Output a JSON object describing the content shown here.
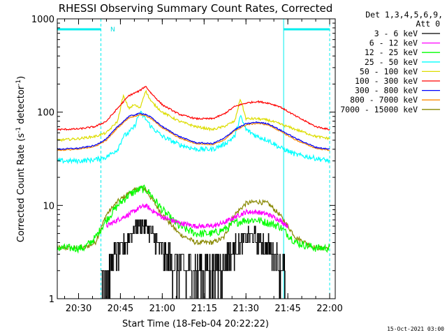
{
  "chart_data": {
    "type": "line",
    "title": "RHESSI Observing Summary Count Rates, Corrected",
    "xlabel": "Start Time (18-Feb-04 20:22:22)",
    "ylabel": "Corrected Count Rate (s",
    "ylabel_sup1": "-1",
    "ylabel_mid": " detector",
    "ylabel_sup2": "-1",
    "ylabel_end": ")",
    "x_scale": "time",
    "x_range": [
      "20:22:22",
      "22:02:00"
    ],
    "x_ticks": [
      "20:30",
      "20:45",
      "21:00",
      "21:15",
      "21:30",
      "21:45",
      "22:00"
    ],
    "y_scale": "log",
    "y_range": [
      1,
      1000
    ],
    "y_ticks": [
      "1",
      "10",
      "100",
      "1000"
    ],
    "legend_title_1": "Det 1,3,4,5,6,9,",
    "legend_title_2": "Att 0",
    "legend_position": "right",
    "footer_date": "15-Oct-2021 03:00",
    "annotation": "N",
    "night_intervals": [
      {
        "start": "20:22:22",
        "end": "20:38:00"
      },
      {
        "start": "21:43:30",
        "end": "22:00:00"
      }
    ],
    "series": [
      {
        "name": "3 - 6 keV",
        "color": "#000000",
        "x": [
          "20:38",
          "20:40",
          "20:42",
          "20:44",
          "20:46",
          "20:48",
          "20:50",
          "20:52",
          "20:54",
          "20:56",
          "20:58",
          "21:00",
          "21:04",
          "21:08",
          "21:12",
          "21:16",
          "21:20",
          "21:22",
          "21:24",
          "21:26",
          "21:28",
          "21:30",
          "21:32",
          "21:34",
          "21:36",
          "21:38",
          "21:40",
          "21:42",
          "21:44"
        ],
        "y": [
          1.5,
          2.0,
          2.5,
          3.0,
          3.5,
          4.5,
          5.5,
          6.5,
          6.0,
          5.0,
          4.0,
          3.0,
          2.5,
          2.0,
          2.0,
          2.0,
          2.0,
          2.5,
          3.0,
          3.5,
          4.0,
          4.5,
          4.8,
          4.5,
          4.0,
          3.5,
          3.0,
          2.5,
          2.0
        ]
      },
      {
        "name": "6 - 12 keV",
        "color": "#ff00ff",
        "x": [
          "20:40",
          "20:44",
          "20:48",
          "20:52",
          "20:54",
          "20:56",
          "21:00",
          "21:06",
          "21:12",
          "21:18",
          "21:22",
          "21:26",
          "21:30",
          "21:34",
          "21:38",
          "21:42",
          "21:45"
        ],
        "y": [
          6.0,
          7.0,
          8.0,
          9.5,
          10.0,
          9.0,
          7.5,
          6.5,
          6.0,
          6.0,
          6.5,
          7.5,
          8.5,
          8.5,
          8.0,
          7.0,
          6.0
        ]
      },
      {
        "name": "12 - 25 keV",
        "color": "#00ff00",
        "x": [
          "20:22:22",
          "20:32",
          "20:36",
          "20:40",
          "20:44",
          "20:48",
          "20:52",
          "20:54",
          "20:56",
          "21:00",
          "21:06",
          "21:12",
          "21:18",
          "21:22",
          "21:26",
          "21:30",
          "21:34",
          "21:38",
          "21:42",
          "21:48",
          "21:55",
          "22:00"
        ],
        "y": [
          3.5,
          3.5,
          4.5,
          7.0,
          10.0,
          13.0,
          15.0,
          15.0,
          13.0,
          9.0,
          6.0,
          5.0,
          5.0,
          5.5,
          6.5,
          7.0,
          7.0,
          6.5,
          6.0,
          4.0,
          3.5,
          3.5
        ]
      },
      {
        "name": "25 - 50 keV",
        "color": "#00ffff",
        "x": [
          "20:22:22",
          "20:30",
          "20:36",
          "20:40",
          "20:44",
          "20:46",
          "20:48",
          "20:50",
          "20:52",
          "20:54",
          "20:56",
          "21:00",
          "21:06",
          "21:12",
          "21:18",
          "21:22",
          "21:26",
          "21:28",
          "21:30",
          "21:34",
          "21:38",
          "21:42",
          "21:48",
          "21:55",
          "22:00"
        ],
        "y": [
          30,
          30,
          31,
          33,
          40,
          55,
          60,
          70,
          100,
          85,
          70,
          55,
          45,
          40,
          40,
          45,
          55,
          90,
          65,
          55,
          50,
          42,
          35,
          32,
          30
        ]
      },
      {
        "name": "50 - 100 keV",
        "color": "#dddd00",
        "x": [
          "20:22:22",
          "20:30",
          "20:36",
          "20:40",
          "20:44",
          "20:46",
          "20:48",
          "20:50",
          "20:52",
          "20:54",
          "20:56",
          "21:00",
          "21:06",
          "21:12",
          "21:18",
          "21:22",
          "21:26",
          "21:28",
          "21:30",
          "21:34",
          "21:38",
          "21:42",
          "21:48",
          "21:55",
          "22:00"
        ],
        "y": [
          50,
          52,
          55,
          60,
          80,
          150,
          110,
          120,
          110,
          170,
          130,
          100,
          80,
          70,
          65,
          70,
          80,
          140,
          85,
          85,
          82,
          75,
          65,
          55,
          52
        ]
      },
      {
        "name": "100 - 300 keV",
        "color": "#ff0000",
        "x": [
          "20:22:22",
          "20:30",
          "20:36",
          "20:40",
          "20:44",
          "20:48",
          "20:52",
          "20:54",
          "20:56",
          "21:00",
          "21:06",
          "21:12",
          "21:18",
          "21:22",
          "21:26",
          "21:30",
          "21:34",
          "21:38",
          "21:42",
          "21:48",
          "21:55",
          "22:00"
        ],
        "y": [
          65,
          66,
          70,
          80,
          110,
          150,
          170,
          190,
          160,
          120,
          95,
          85,
          85,
          95,
          115,
          125,
          130,
          125,
          115,
          90,
          70,
          65
        ]
      },
      {
        "name": "300 - 800 keV",
        "color": "#0000ff",
        "x": [
          "20:22:22",
          "20:30",
          "20:36",
          "20:40",
          "20:44",
          "20:48",
          "20:52",
          "20:54",
          "20:56",
          "21:00",
          "21:06",
          "21:12",
          "21:18",
          "21:22",
          "21:26",
          "21:30",
          "21:34",
          "21:38",
          "21:42",
          "21:48",
          "21:55",
          "22:00"
        ],
        "y": [
          40,
          41,
          44,
          52,
          70,
          90,
          97,
          95,
          88,
          70,
          55,
          47,
          46,
          52,
          65,
          75,
          78,
          75,
          65,
          52,
          42,
          40
        ]
      },
      {
        "name": "800 - 7000 keV",
        "color": "#ff8800",
        "x": [
          "20:22:22",
          "20:30",
          "20:36",
          "20:40",
          "20:44",
          "20:48",
          "20:52",
          "20:54",
          "20:56",
          "21:00",
          "21:06",
          "21:12",
          "21:18",
          "21:22",
          "21:26",
          "21:30",
          "21:34",
          "21:38",
          "21:42",
          "21:48",
          "21:55",
          "22:00"
        ],
        "y": [
          39,
          40,
          43,
          50,
          68,
          87,
          94,
          92,
          85,
          68,
          53,
          46,
          45,
          50,
          63,
          73,
          76,
          73,
          63,
          50,
          41,
          39
        ]
      },
      {
        "name": "7000 - 15000 keV",
        "color": "#888800",
        "x": [
          "20:22:22",
          "20:32",
          "20:36",
          "20:40",
          "20:44",
          "20:48",
          "20:52",
          "20:54",
          "20:56",
          "21:00",
          "21:06",
          "21:12",
          "21:18",
          "21:22",
          "21:26",
          "21:30",
          "21:34",
          "21:38",
          "21:42",
          "21:48",
          "21:55",
          "22:00"
        ],
        "y": [
          3.5,
          3.5,
          4.0,
          8.0,
          11.0,
          13.5,
          15.5,
          15.0,
          12.0,
          8.0,
          5.0,
          4.0,
          4.0,
          4.5,
          8.0,
          10.5,
          11.0,
          10.5,
          8.0,
          4.5,
          3.5,
          3.5
        ]
      }
    ]
  }
}
